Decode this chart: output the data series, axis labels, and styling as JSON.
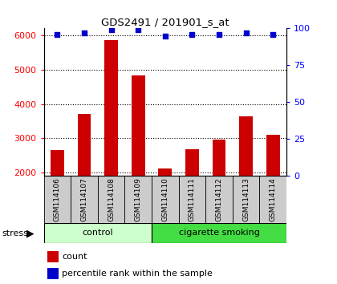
{
  "title": "GDS2491 / 201901_s_at",
  "samples": [
    "GSM114106",
    "GSM114107",
    "GSM114108",
    "GSM114109",
    "GSM114110",
    "GSM114111",
    "GSM114112",
    "GSM114113",
    "GSM114114"
  ],
  "counts": [
    2650,
    3700,
    5850,
    4820,
    2120,
    2680,
    2960,
    3650,
    3100
  ],
  "percentile_ranks": [
    96,
    97,
    99,
    99,
    95,
    96,
    96,
    97,
    96
  ],
  "bar_color": "#cc0000",
  "dot_color": "#0000cc",
  "ylim_left": [
    1900,
    6200
  ],
  "ylim_right": [
    0,
    100
  ],
  "yticks_left": [
    2000,
    3000,
    4000,
    5000,
    6000
  ],
  "yticks_right": [
    0,
    25,
    50,
    75,
    100
  ],
  "groups": [
    {
      "label": "control",
      "indices": [
        0,
        1,
        2,
        3
      ],
      "color": "#ccffcc"
    },
    {
      "label": "cigarette smoking",
      "indices": [
        4,
        5,
        6,
        7,
        8
      ],
      "color": "#44dd44"
    }
  ],
  "stress_label": "stress",
  "legend_count_label": "count",
  "legend_pct_label": "percentile rank within the sample",
  "tick_label_area_color": "#cccccc"
}
